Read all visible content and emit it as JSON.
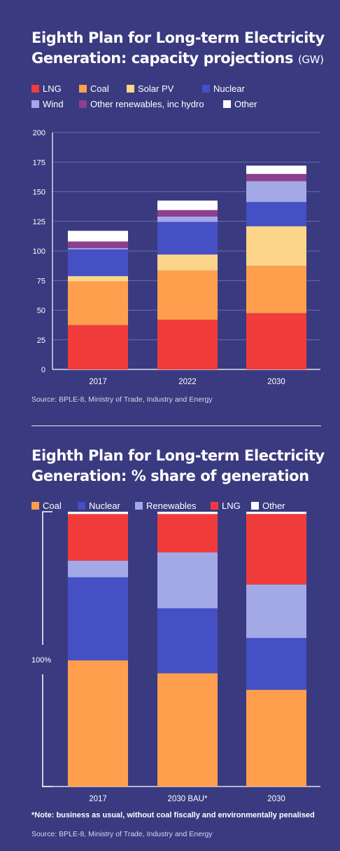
{
  "chart1": {
    "title": "Eighth Plan for Long-term Electricity Generation: capacity projections",
    "unit": "(GW)",
    "source": "Source: BPLE-8, Ministry of Trade, Industry and Energy",
    "legend": [
      {
        "label": "LNG",
        "color": "#f23b3b"
      },
      {
        "label": "Coal",
        "color": "#ff9f4e"
      },
      {
        "label": "Solar PV",
        "color": "#fdd58a"
      },
      {
        "label": "Nuclear",
        "color": "#4550c4"
      },
      {
        "label": "Wind",
        "color": "#a3a8e6"
      },
      {
        "label": "Other renewables, inc hydro",
        "color": "#8c3f8c"
      },
      {
        "label": "Other",
        "color": "#ffffff"
      }
    ]
  },
  "chart2": {
    "title": "Eighth Plan for Long-term Electricity Generation: % share of generation",
    "legend": [
      {
        "label": "Coal",
        "color": "#ff9f4e"
      },
      {
        "label": "Nuclear",
        "color": "#4550c4"
      },
      {
        "label": "Renewables",
        "color": "#a3a8e6"
      },
      {
        "label": "LNG",
        "color": "#f23b3b"
      },
      {
        "label": "Other",
        "color": "#ffffff"
      }
    ],
    "bracket_label": "100%",
    "note": "*Note: business as usual, without coal fiscally and environmentally penalised",
    "source": "Source: BPLE-8, Ministry of Trade, Industry and Energy"
  },
  "chart_data": [
    {
      "type": "bar",
      "stacked": true,
      "title": "Eighth Plan for Long-term Electricity Generation: capacity projections",
      "ylabel": "(GW)",
      "xlabel": "",
      "categories": [
        "2017",
        "2022",
        "2030"
      ],
      "ylim": [
        0,
        200
      ],
      "yticks": [
        0,
        25,
        50,
        75,
        100,
        125,
        150,
        175,
        200
      ],
      "grid": true,
      "legend_position": "top",
      "series": [
        {
          "name": "LNG",
          "color": "#f23b3b",
          "values": [
            37.4,
            42.0,
            47.5
          ]
        },
        {
          "name": "Coal",
          "color": "#ff9f4e",
          "values": [
            36.9,
            41.5,
            39.9
          ]
        },
        {
          "name": "Solar PV",
          "color": "#fdd58a",
          "values": [
            4.5,
            13.5,
            33.5
          ]
        },
        {
          "name": "Nuclear",
          "color": "#4550c4",
          "values": [
            22.5,
            27.5,
            20.4
          ]
        },
        {
          "name": "Wind",
          "color": "#a3a8e6",
          "values": [
            1.2,
            4.5,
            17.7
          ]
        },
        {
          "name": "Other renewables, inc hydro",
          "color": "#8c3f8c",
          "values": [
            5.5,
            5.5,
            6.0
          ]
        },
        {
          "name": "Other",
          "color": "#ffffff",
          "values": [
            9.0,
            8.0,
            7.0
          ]
        }
      ]
    },
    {
      "type": "bar",
      "stacked": true,
      "title": "Eighth Plan for Long-term Electricity Generation: % share of generation",
      "xlabel": "",
      "ylabel": "",
      "categories": [
        "2017",
        "2030 BAU*",
        "2030"
      ],
      "ylim": [
        0,
        100
      ],
      "grid": false,
      "legend_position": "top",
      "series": [
        {
          "name": "Coal",
          "color": "#ff9f4e",
          "values": [
            43.1,
            38.7,
            34.3
          ]
        },
        {
          "name": "Nuclear",
          "color": "#4550c4",
          "values": [
            28.4,
            22.2,
            18.4
          ]
        },
        {
          "name": "Renewables",
          "color": "#a3a8e6",
          "values": [
            5.7,
            19.1,
            19.0
          ]
        },
        {
          "name": "LNG",
          "color": "#f23b3b",
          "values": [
            15.9,
            13.1,
            25.0
          ]
        },
        {
          "name": "Other",
          "color": "#ffffff",
          "values": [
            0.8,
            0.8,
            0.8
          ]
        }
      ]
    }
  ]
}
